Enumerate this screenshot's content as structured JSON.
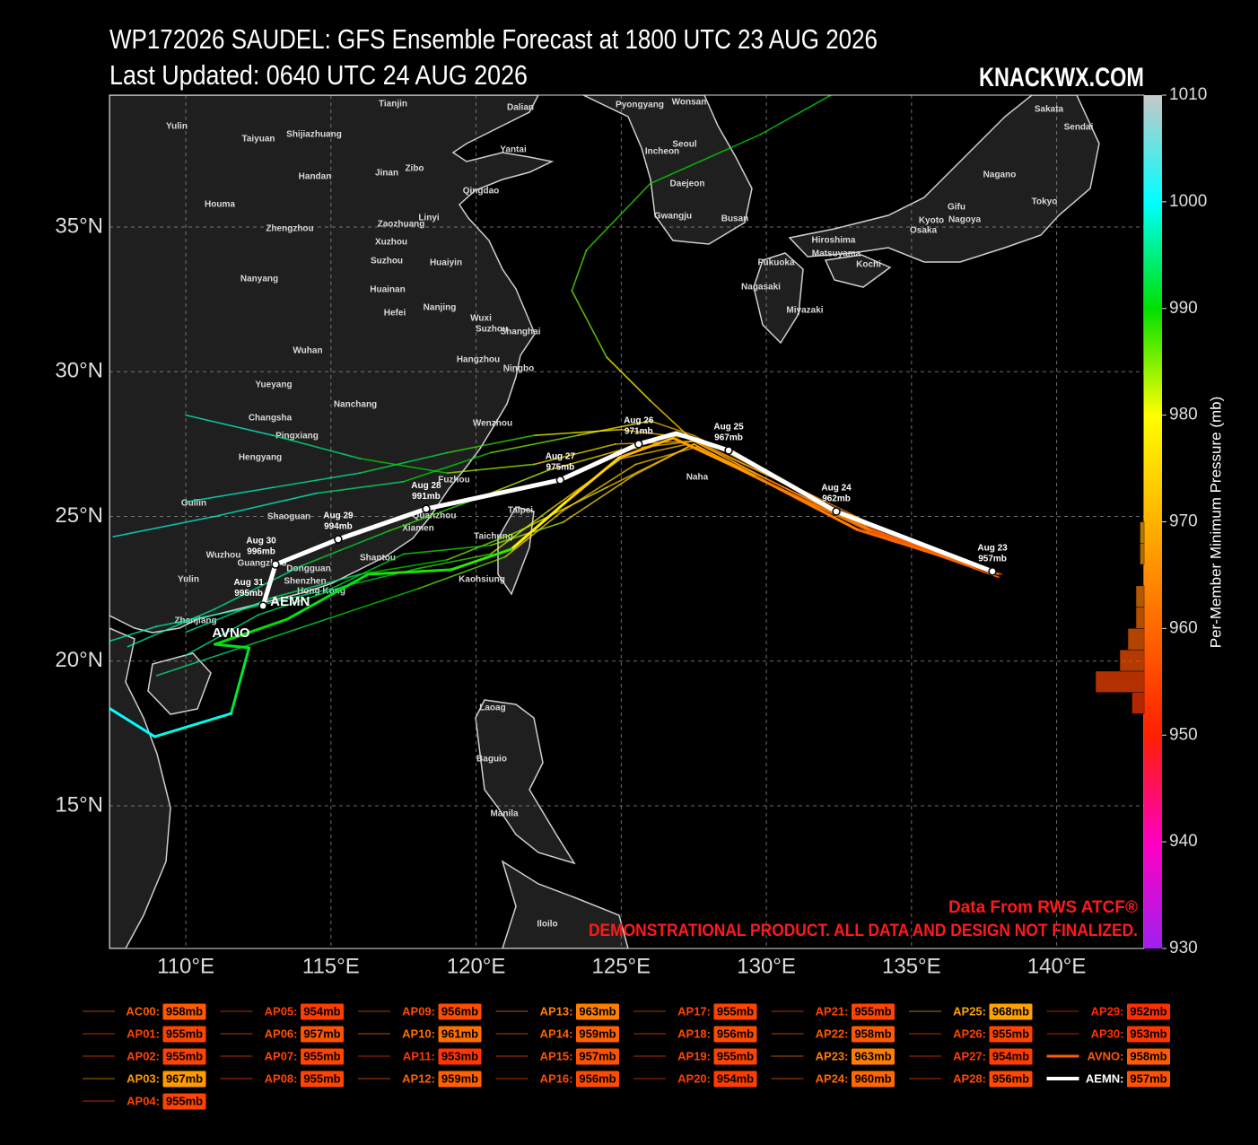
{
  "header": {
    "title": "WP172026 SAUDEL: GFS Ensemble Forecast at 1800 UTC 23 AUG 2026",
    "subtitle": "Last Updated: 0640 UTC 24 AUG 2026",
    "brand": "KNACKWX.COM"
  },
  "map": {
    "xticks": [
      {
        "value": 110,
        "label": "110°E"
      },
      {
        "value": 115,
        "label": "115°E"
      },
      {
        "value": 120,
        "label": "120°E"
      },
      {
        "value": 125,
        "label": "125°E"
      },
      {
        "value": 130,
        "label": "130°E"
      },
      {
        "value": 135,
        "label": "135°E"
      },
      {
        "value": 140,
        "label": "140°E"
      }
    ],
    "yticks": [
      {
        "value": 35,
        "label": "35°N"
      },
      {
        "value": 30,
        "label": "30°N"
      },
      {
        "value": 25,
        "label": "25°N"
      },
      {
        "value": 20,
        "label": "20°N"
      },
      {
        "value": 15,
        "label": "15°N"
      }
    ],
    "grid": true,
    "cities": [
      "Yulin",
      "Taiyuan",
      "Shijiazhuang",
      "Tianjin",
      "Dalian",
      "Pyongyang",
      "Wonsan",
      "Sakata",
      "Sendai",
      "Handan",
      "Jinan",
      "Zibo",
      "Yantai",
      "Seoul",
      "Incheon",
      "Houma",
      "Qingdao",
      "Daejeon",
      "Nagano",
      "Linyi",
      "Gwangju",
      "Busan",
      "Zhengzhou",
      "Zaozhuang",
      "Xuzhou",
      "Kyoto",
      "Nagoya",
      "Gifu",
      "Tokyo",
      "Osaka",
      "Nanyang",
      "Suzhou",
      "Huaiyin",
      "Hiroshima",
      "Fukuoka",
      "Matsuyama",
      "Kochi",
      "Huainan",
      "Hefei",
      "Nanjing",
      "Nagasaki",
      "Miyazaki",
      "Wuxi",
      "Suzhou",
      "Shanghai",
      "Wuhan",
      "Hangzhou",
      "Ningbo",
      "Yueyang",
      "Nanchang",
      "Changsha",
      "Pingxiang",
      "Wenzhou",
      "Hengyang",
      "Fuzhou",
      "Guilin",
      "Shaoguan",
      "Quanzhou",
      "Taipei",
      "Xiamen",
      "Taichung",
      "Wuzhou",
      "Guangzhou",
      "Shantou",
      "Dongguan",
      "Shenzhen",
      "Hong Kong",
      "Kaohsiung",
      "Yulin",
      "Zhanjiang",
      "Naha",
      "Laoag",
      "Baguio",
      "Manila",
      "Iloilo"
    ],
    "ensemble_tracks": [
      {
        "lon": [
          138.0,
          133.5,
          130.0,
          127.5,
          125.0,
          122.5,
          120.0,
          117.0,
          114.0,
          111.0,
          108.0
        ],
        "lat": [
          23.0,
          24.6,
          26.3,
          27.6,
          27.3,
          26.6,
          25.6,
          24.5,
          23.3,
          21.8,
          20.5
        ],
        "pressure": [
          955,
          959,
          964,
          968,
          972,
          976,
          982,
          988,
          992,
          995,
          997
        ]
      },
      {
        "lon": [
          138.0,
          133.5,
          130.0,
          127.5,
          124.5,
          121.5,
          119.0,
          116.0,
          113.0,
          110.0
        ],
        "lat": [
          22.9,
          24.5,
          26.2,
          27.5,
          26.0,
          24.5,
          23.5,
          23.0,
          22.2,
          21.0
        ],
        "pressure": [
          956,
          960,
          964,
          968,
          973,
          978,
          985,
          990,
          994,
          996
        ]
      },
      {
        "lon": [
          137.9,
          133.4,
          130.1,
          127.4,
          125.0,
          122.0,
          119.0,
          116.0,
          113.0,
          110.0
        ],
        "lat": [
          23.1,
          24.7,
          26.4,
          27.7,
          28.0,
          27.8,
          27.2,
          26.5,
          26.0,
          25.5
        ],
        "pressure": [
          955,
          960,
          965,
          969,
          972,
          980,
          988,
          993,
          996,
          998
        ]
      },
      {
        "lon": [
          138.1,
          133.6,
          130.0,
          127.6,
          125.5,
          123.0,
          121.0,
          118.0,
          115.0,
          112.0,
          109.0
        ],
        "lat": [
          23.0,
          24.5,
          26.3,
          27.4,
          26.8,
          25.2,
          23.6,
          22.5,
          21.5,
          20.5,
          19.5
        ],
        "pressure": [
          954,
          959,
          963,
          967,
          971,
          974,
          976,
          986,
          990,
          993,
          995
        ]
      },
      {
        "lon": [
          137.8,
          133.5,
          130.0,
          127.5,
          126.0,
          123.5,
          120.5,
          117.5,
          114.5,
          111.0,
          107.5
        ],
        "lat": [
          23.1,
          24.8,
          26.5,
          27.8,
          28.3,
          27.8,
          27.2,
          26.2,
          25.8,
          25.0,
          24.3
        ],
        "pressure": [
          956,
          960,
          965,
          968,
          970,
          978,
          985,
          990,
          994,
          998,
          999
        ]
      },
      {
        "lon": [
          138.0,
          133.4,
          129.9,
          127.3,
          125.0,
          122.5,
          120.5,
          118.0,
          115.5,
          112.5,
          110.0
        ],
        "lat": [
          23.0,
          24.6,
          26.2,
          27.5,
          27.0,
          25.2,
          23.7,
          23.2,
          22.6,
          21.6,
          20.2
        ],
        "pressure": [
          955,
          959,
          964,
          968,
          972,
          977,
          982,
          988,
          991,
          994,
          996
        ]
      },
      {
        "lon": [
          137.9,
          133.5,
          130.1,
          127.5,
          124.8,
          122.0,
          119.0,
          116.0,
          113.0,
          110.0
        ],
        "lat": [
          23.0,
          24.7,
          26.4,
          27.6,
          27.5,
          26.8,
          26.5,
          27.0,
          27.8,
          28.5
        ],
        "pressure": [
          955,
          960,
          965,
          968,
          971,
          976,
          984,
          990,
          995,
          998
        ]
      },
      {
        "lon": [
          138.0,
          133.6,
          130.0,
          127.5,
          125.4,
          123.0,
          120.5,
          117.5,
          115.0,
          112.0,
          109.0,
          107.4
        ],
        "lat": [
          22.9,
          24.5,
          26.2,
          27.5,
          26.4,
          24.8,
          24.0,
          23.7,
          22.5,
          21.8,
          21.2,
          20.7
        ],
        "pressure": [
          954,
          959,
          963,
          968,
          972,
          976,
          983,
          989,
          992,
          995,
          996,
          997
        ]
      },
      {
        "lon": [
          138.0,
          133.5,
          130.0,
          127.5,
          126.0,
          124.5,
          123.3,
          123.8,
          126.0,
          129.8,
          132.3
        ],
        "lat": [
          23.0,
          24.6,
          26.3,
          27.6,
          29.0,
          30.5,
          32.8,
          34.2,
          36.5,
          38.2,
          39.6
        ],
        "pressure": [
          956,
          960,
          964,
          968,
          975,
          980,
          985,
          987,
          988,
          990,
          991
        ]
      }
    ],
    "avno": {
      "name": "AVNO",
      "lon": [
        137.85,
        133.12,
        129.57,
        126.79,
        124.93,
        123.07,
        121.22,
        119.15,
        116.28,
        113.5,
        111.0,
        112.18,
        111.56,
        108.93,
        107.4
      ],
      "lat": [
        23.06,
        24.55,
        26.41,
        27.71,
        27.03,
        25.48,
        23.87,
        23.16,
        23.0,
        21.45,
        20.58,
        20.46,
        18.19,
        17.39,
        18.35
      ],
      "pressure": [
        958,
        960,
        963,
        967,
        970,
        974,
        978,
        988,
        989,
        991,
        990,
        991,
        992,
        999,
        1000
      ]
    },
    "aemn": {
      "name": "AEMN",
      "lon": [
        137.79,
        132.41,
        128.7,
        126.9,
        125.6,
        122.9,
        118.28,
        115.25,
        113.09,
        112.66
      ],
      "lat": [
        23.1,
        25.17,
        27.28,
        27.87,
        27.5,
        26.26,
        25.26,
        24.21,
        23.34,
        21.91
      ],
      "pressure": [
        957,
        962,
        967,
        969,
        971,
        975,
        991,
        994,
        996,
        995
      ],
      "dates": [
        "Aug 23",
        "Aug 24",
        "Aug 25",
        null,
        "Aug 26",
        "Aug 27",
        "Aug 28",
        "Aug 29",
        "Aug 30",
        "Aug 31"
      ],
      "value_labels": [
        "957mb",
        "962mb",
        "967mb",
        null,
        "971mb",
        "975mb",
        "991mb",
        "994mb",
        "996mb",
        "995mb"
      ]
    },
    "notes": [
      "Data From RWS ATCF®",
      "DEMONSTRATIONAL PRODUCT. ALL DATA AND DESIGN NOT FINALIZED."
    ]
  },
  "colorbar": {
    "label": "Per-Member Minimum Pressure (mb)",
    "lim": [
      930,
      1010
    ],
    "ticks": [
      930,
      940,
      950,
      960,
      970,
      980,
      990,
      1000,
      1010
    ],
    "colors": [
      {
        "value": 930,
        "color": "#a020f0"
      },
      {
        "value": 940,
        "color": "#ff00c0"
      },
      {
        "value": 950,
        "color": "#ff2000"
      },
      {
        "value": 965,
        "color": "#ff8c00"
      },
      {
        "value": 980,
        "color": "#ffff00"
      },
      {
        "value": 990,
        "color": "#00e000"
      },
      {
        "value": 1000,
        "color": "#00ffff"
      },
      {
        "value": 1010,
        "color": "#c8c8c8"
      }
    ],
    "histogram": {
      "bins": [
        952,
        954,
        956,
        958,
        960,
        962,
        964,
        966,
        968,
        970
      ],
      "counts": [
        3,
        12,
        6,
        4,
        2,
        2,
        0,
        1,
        1
      ]
    }
  },
  "legend": {
    "entries": [
      {
        "name": "AC00:",
        "pressure": 958,
        "label": "958mb"
      },
      {
        "name": "AP01:",
        "pressure": 955,
        "label": "955mb"
      },
      {
        "name": "AP02:",
        "pressure": 955,
        "label": "955mb"
      },
      {
        "name": "AP03:",
        "pressure": 967,
        "label": "967mb"
      },
      {
        "name": "AP04:",
        "pressure": 955,
        "label": "955mb"
      },
      {
        "name": "AP05:",
        "pressure": 954,
        "label": "954mb"
      },
      {
        "name": "AP06:",
        "pressure": 957,
        "label": "957mb"
      },
      {
        "name": "AP07:",
        "pressure": 955,
        "label": "955mb"
      },
      {
        "name": "AP08:",
        "pressure": 955,
        "label": "955mb"
      },
      {
        "name": "AP09:",
        "pressure": 956,
        "label": "956mb"
      },
      {
        "name": "AP10:",
        "pressure": 961,
        "label": "961mb"
      },
      {
        "name": "AP11:",
        "pressure": 953,
        "label": "953mb"
      },
      {
        "name": "AP12:",
        "pressure": 959,
        "label": "959mb"
      },
      {
        "name": "AP13:",
        "pressure": 963,
        "label": "963mb"
      },
      {
        "name": "AP14:",
        "pressure": 959,
        "label": "959mb"
      },
      {
        "name": "AP15:",
        "pressure": 957,
        "label": "957mb"
      },
      {
        "name": "AP16:",
        "pressure": 956,
        "label": "956mb"
      },
      {
        "name": "AP17:",
        "pressure": 955,
        "label": "955mb"
      },
      {
        "name": "AP18:",
        "pressure": 956,
        "label": "956mb"
      },
      {
        "name": "AP19:",
        "pressure": 955,
        "label": "955mb"
      },
      {
        "name": "AP20:",
        "pressure": 954,
        "label": "954mb"
      },
      {
        "name": "AP21:",
        "pressure": 955,
        "label": "955mb"
      },
      {
        "name": "AP22:",
        "pressure": 958,
        "label": "958mb"
      },
      {
        "name": "AP23:",
        "pressure": 963,
        "label": "963mb"
      },
      {
        "name": "AP24:",
        "pressure": 960,
        "label": "960mb"
      },
      {
        "name": "AP25:",
        "pressure": 968,
        "label": "968mb"
      },
      {
        "name": "AP26:",
        "pressure": 955,
        "label": "955mb"
      },
      {
        "name": "AP27:",
        "pressure": 954,
        "label": "954mb"
      },
      {
        "name": "AP28:",
        "pressure": 956,
        "label": "956mb"
      },
      {
        "name": "AP29:",
        "pressure": 952,
        "label": "952mb"
      },
      {
        "name": "AP30:",
        "pressure": 953,
        "label": "953mb"
      },
      {
        "name": "AVNO:",
        "pressure": 958,
        "label": "958mb",
        "line_width": 3
      },
      {
        "name": "AEMN:",
        "pressure": 957,
        "label": "957mb",
        "line_width": 4,
        "color": "#ffffff"
      }
    ]
  }
}
